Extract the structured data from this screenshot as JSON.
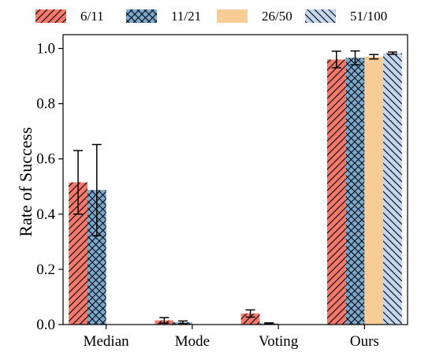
{
  "chart_data": {
    "type": "bar",
    "categories": [
      "Median",
      "Mode",
      "Voting",
      "Ours"
    ],
    "ylabel": "Rate of Success",
    "ylim": [
      0,
      1.0
    ],
    "yticks": [
      "0.0",
      "0.2",
      "0.4",
      "0.6",
      "0.8",
      "1.0"
    ],
    "legend_position": "top",
    "series": [
      {
        "name": "6/11",
        "color": "#f4796d",
        "hatch": "forward-diagonal",
        "values": [
          0.515,
          0.015,
          0.04,
          0.96
        ],
        "errors": [
          0.115,
          0.01,
          0.013,
          0.03
        ]
      },
      {
        "name": "11/21",
        "color": "#7aa9cf",
        "hatch": "crosshatch",
        "values": [
          0.487,
          0.008,
          0.004,
          0.966
        ],
        "errors": [
          0.165,
          0.005,
          0.002,
          0.025
        ]
      },
      {
        "name": "26/50",
        "color": "#f8cc95",
        "hatch": "none",
        "values": [
          0.0,
          0.0,
          0.0,
          0.97
        ],
        "errors": [
          0,
          0,
          0,
          0.008
        ]
      },
      {
        "name": "51/100",
        "color": "#c2d7ee",
        "hatch": "back-diagonal",
        "values": [
          0.0,
          0.0,
          0.0,
          0.983
        ],
        "errors": [
          0,
          0,
          0,
          0.004
        ]
      }
    ]
  }
}
